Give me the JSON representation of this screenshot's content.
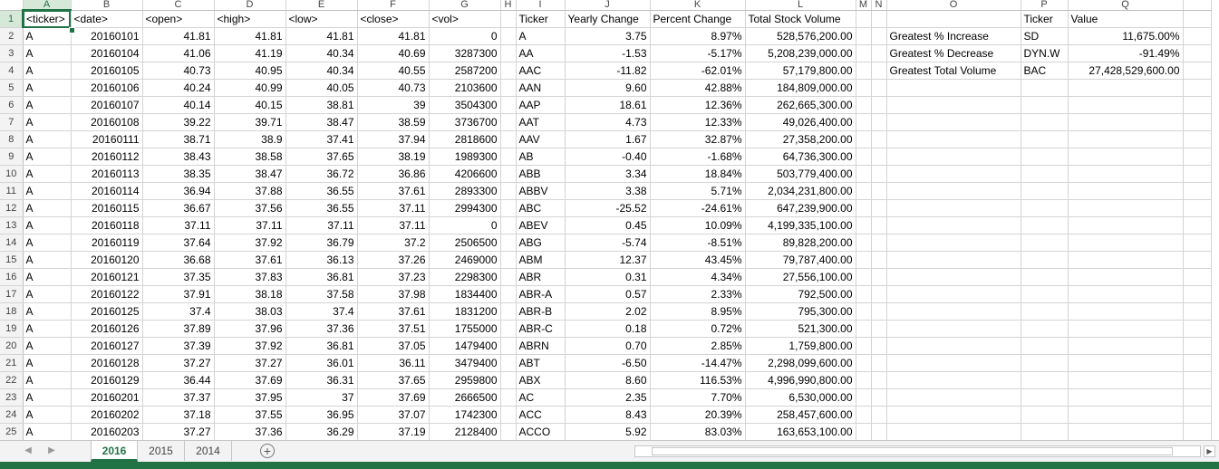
{
  "columns": [
    "A",
    "B",
    "C",
    "D",
    "E",
    "F",
    "G",
    "H",
    "I",
    "J",
    "K",
    "L",
    "M",
    "N",
    "O",
    "P",
    "Q"
  ],
  "active_column": "A",
  "active_row": 1,
  "rows": [
    [
      "<ticker>",
      "<date>",
      "<open>",
      "<high>",
      "<low>",
      "<close>",
      "<vol>",
      "",
      "Ticker",
      "Yearly Change",
      "Percent Change",
      "Total Stock Volume",
      "",
      "",
      "",
      "Ticker",
      "Value"
    ],
    [
      "A",
      "20160101",
      "41.81",
      "41.81",
      "41.81",
      "41.81",
      "0",
      "",
      "A",
      "3.75",
      "8.97%",
      "528,576,200.00",
      "",
      "",
      "Greatest % Increase",
      "SD",
      "11,675.00%"
    ],
    [
      "A",
      "20160104",
      "41.06",
      "41.19",
      "40.34",
      "40.69",
      "3287300",
      "",
      "AA",
      "-1.53",
      "-5.17%",
      "5,208,239,000.00",
      "",
      "",
      "Greatest % Decrease",
      "DYN.W",
      "-91.49%"
    ],
    [
      "A",
      "20160105",
      "40.73",
      "40.95",
      "40.34",
      "40.55",
      "2587200",
      "",
      "AAC",
      "-11.82",
      "-62.01%",
      "57,179,800.00",
      "",
      "",
      "Greatest Total Volume",
      "BAC",
      "27,428,529,600.00"
    ],
    [
      "A",
      "20160106",
      "40.24",
      "40.99",
      "40.05",
      "40.73",
      "2103600",
      "",
      "AAN",
      "9.60",
      "42.88%",
      "184,809,000.00",
      "",
      "",
      "",
      "",
      ""
    ],
    [
      "A",
      "20160107",
      "40.14",
      "40.15",
      "38.81",
      "39",
      "3504300",
      "",
      "AAP",
      "18.61",
      "12.36%",
      "262,665,300.00",
      "",
      "",
      "",
      "",
      ""
    ],
    [
      "A",
      "20160108",
      "39.22",
      "39.71",
      "38.47",
      "38.59",
      "3736700",
      "",
      "AAT",
      "4.73",
      "12.33%",
      "49,026,400.00",
      "",
      "",
      "",
      "",
      ""
    ],
    [
      "A",
      "20160111",
      "38.71",
      "38.9",
      "37.41",
      "37.94",
      "2818600",
      "",
      "AAV",
      "1.67",
      "32.87%",
      "27,358,200.00",
      "",
      "",
      "",
      "",
      ""
    ],
    [
      "A",
      "20160112",
      "38.43",
      "38.58",
      "37.65",
      "38.19",
      "1989300",
      "",
      "AB",
      "-0.40",
      "-1.68%",
      "64,736,300.00",
      "",
      "",
      "",
      "",
      ""
    ],
    [
      "A",
      "20160113",
      "38.35",
      "38.47",
      "36.72",
      "36.86",
      "4206600",
      "",
      "ABB",
      "3.34",
      "18.84%",
      "503,779,400.00",
      "",
      "",
      "",
      "",
      ""
    ],
    [
      "A",
      "20160114",
      "36.94",
      "37.88",
      "36.55",
      "37.61",
      "2893300",
      "",
      "ABBV",
      "3.38",
      "5.71%",
      "2,034,231,800.00",
      "",
      "",
      "",
      "",
      ""
    ],
    [
      "A",
      "20160115",
      "36.67",
      "37.56",
      "36.55",
      "37.11",
      "2994300",
      "",
      "ABC",
      "-25.52",
      "-24.61%",
      "647,239,900.00",
      "",
      "",
      "",
      "",
      ""
    ],
    [
      "A",
      "20160118",
      "37.11",
      "37.11",
      "37.11",
      "37.11",
      "0",
      "",
      "ABEV",
      "0.45",
      "10.09%",
      "4,199,335,100.00",
      "",
      "",
      "",
      "",
      ""
    ],
    [
      "A",
      "20160119",
      "37.64",
      "37.92",
      "36.79",
      "37.2",
      "2506500",
      "",
      "ABG",
      "-5.74",
      "-8.51%",
      "89,828,200.00",
      "",
      "",
      "",
      "",
      ""
    ],
    [
      "A",
      "20160120",
      "36.68",
      "37.61",
      "36.13",
      "37.26",
      "2469000",
      "",
      "ABM",
      "12.37",
      "43.45%",
      "79,787,400.00",
      "",
      "",
      "",
      "",
      ""
    ],
    [
      "A",
      "20160121",
      "37.35",
      "37.83",
      "36.81",
      "37.23",
      "2298300",
      "",
      "ABR",
      "0.31",
      "4.34%",
      "27,556,100.00",
      "",
      "",
      "",
      "",
      ""
    ],
    [
      "A",
      "20160122",
      "37.91",
      "38.18",
      "37.58",
      "37.98",
      "1834400",
      "",
      "ABR-A",
      "0.57",
      "2.33%",
      "792,500.00",
      "",
      "",
      "",
      "",
      ""
    ],
    [
      "A",
      "20160125",
      "37.4",
      "38.03",
      "37.4",
      "37.61",
      "1831200",
      "",
      "ABR-B",
      "2.02",
      "8.95%",
      "795,300.00",
      "",
      "",
      "",
      "",
      ""
    ],
    [
      "A",
      "20160126",
      "37.89",
      "37.96",
      "37.36",
      "37.51",
      "1755000",
      "",
      "ABR-C",
      "0.18",
      "0.72%",
      "521,300.00",
      "",
      "",
      "",
      "",
      ""
    ],
    [
      "A",
      "20160127",
      "37.39",
      "37.92",
      "36.81",
      "37.05",
      "1479400",
      "",
      "ABRN",
      "0.70",
      "2.85%",
      "1,759,800.00",
      "",
      "",
      "",
      "",
      ""
    ],
    [
      "A",
      "20160128",
      "37.27",
      "37.27",
      "36.01",
      "36.11",
      "3479400",
      "",
      "ABT",
      "-6.50",
      "-14.47%",
      "2,298,099,600.00",
      "",
      "",
      "",
      "",
      ""
    ],
    [
      "A",
      "20160129",
      "36.44",
      "37.69",
      "36.31",
      "37.65",
      "2959800",
      "",
      "ABX",
      "8.60",
      "116.53%",
      "4,996,990,800.00",
      "",
      "",
      "",
      "",
      ""
    ],
    [
      "A",
      "20160201",
      "37.37",
      "37.95",
      "37",
      "37.69",
      "2666500",
      "",
      "AC",
      "2.35",
      "7.70%",
      "6,530,000.00",
      "",
      "",
      "",
      "",
      ""
    ],
    [
      "A",
      "20160202",
      "37.18",
      "37.55",
      "36.95",
      "37.07",
      "1742300",
      "",
      "ACC",
      "8.43",
      "20.39%",
      "258,457,600.00",
      "",
      "",
      "",
      "",
      ""
    ],
    [
      "A",
      "20160203",
      "37.27",
      "37.36",
      "36.29",
      "37.19",
      "2128400",
      "",
      "ACCO",
      "5.92",
      "83.03%",
      "163,653,100.00",
      "",
      "",
      "",
      "",
      ""
    ]
  ],
  "sheet_tabs": [
    {
      "label": "2016",
      "active": true
    },
    {
      "label": "2015",
      "active": false
    },
    {
      "label": "2014",
      "active": false
    }
  ],
  "colors": {
    "accent": "#217346"
  }
}
